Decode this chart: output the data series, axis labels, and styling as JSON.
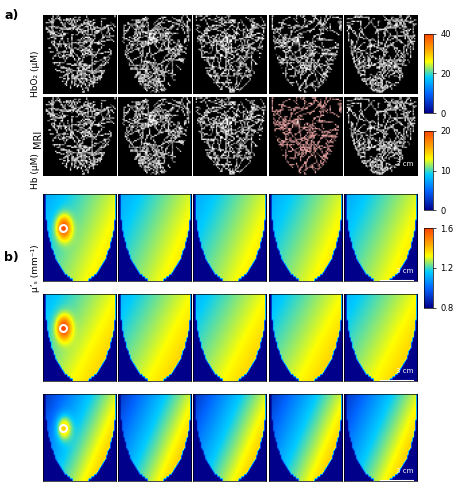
{
  "title_a": "a)",
  "title_b": "b)",
  "mri_label": "MRI",
  "hbo2_label": "HbO₂ (μM)",
  "hb_label": "Hb (μM)",
  "mus_label": "μ’ₛ (mm⁻¹)",
  "hbo2_clim": [
    0,
    40
  ],
  "hb_clim": [
    0,
    20
  ],
  "mus_clim": [
    0.8,
    1.6
  ],
  "hbo2_ticks": [
    0,
    20,
    40
  ],
  "hb_ticks": [
    0,
    10,
    20
  ],
  "mus_ticks": [
    0.8,
    1.2,
    1.6
  ],
  "n_cols": 5,
  "scale_bar_label": "3 cm",
  "background_color": "#ffffff"
}
